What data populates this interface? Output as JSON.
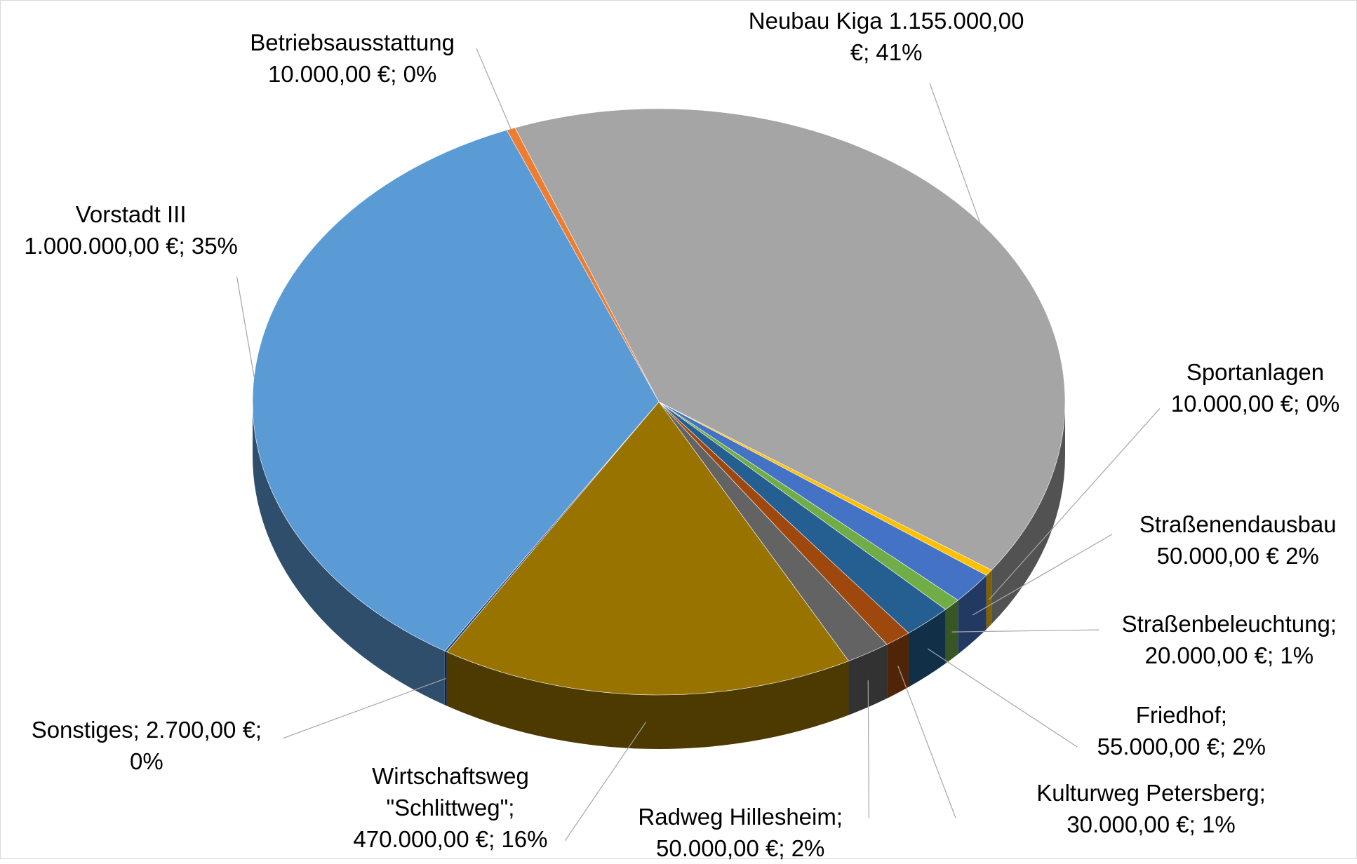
{
  "chart_data": {
    "type": "pie",
    "labels": [
      "Betriebsausstattung\n10.000,00 €; 0%",
      "Neubau Kiga 1.155.000,00\n€; 41%",
      "Sportanlagen\n10.000,00 €; 0%",
      "Straßenendausbau\n50.000,00 € 2%",
      "Straßenbeleuchtung;\n20.000,00 €; 1%",
      "Friedhof;\n55.000,00 €; 2%",
      "Kulturweg Petersberg;\n30.000,00 €; 1%",
      "Radweg Hillesheim;\n50.000,00 €; 2%",
      "Wirtschaftsweg\n\"Schlittweg\";\n470.000,00 €; 16%",
      "Sonstiges; 2.700,00 €;\n0%",
      "Vorstadt III\n1.000.000,00 €; 35%"
    ],
    "values": [
      10000,
      1155000,
      10000,
      50000,
      20000,
      55000,
      30000,
      50000,
      470000,
      2700,
      1000000
    ],
    "colors": [
      "#ED7D31",
      "#A5A5A5",
      "#FFC000",
      "#4472C4",
      "#70AD47",
      "#255E91",
      "#9E480E",
      "#636363",
      "#997300",
      "#264478",
      "#5B9BD5"
    ]
  }
}
